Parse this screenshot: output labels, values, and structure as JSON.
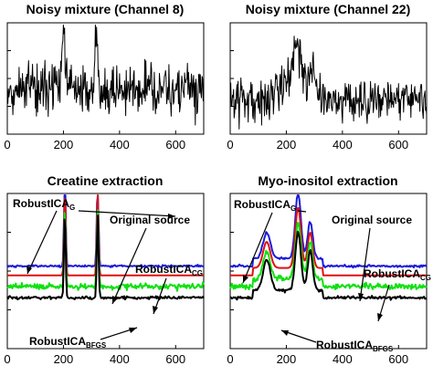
{
  "chart_data": [
    {
      "type": "line",
      "title": "Noisy mixture (Channel 8)",
      "xlim": [
        0,
        700
      ],
      "xticks": [
        0,
        200,
        400,
        600
      ],
      "xtick_labels": [
        "0",
        "200",
        "400",
        "600"
      ],
      "grid": false,
      "series": [
        {
          "color": "#000000",
          "peaks": [
            {
              "x": 200,
              "height": 0.85
            },
            {
              "x": 318,
              "height": 0.75
            }
          ],
          "baseline": 0.4,
          "noise": 0.22
        }
      ]
    },
    {
      "type": "line",
      "title": "Noisy mixture (Channel 22)",
      "xlim": [
        0,
        700
      ],
      "xticks": [
        0,
        200,
        400,
        600
      ],
      "xtick_labels": [
        "0",
        "200",
        "400",
        "600"
      ],
      "grid": false,
      "series": [
        {
          "color": "#000000",
          "peaks": [
            {
              "x": 195,
              "height": 0.25
            },
            {
              "x": 240,
              "height": 0.65
            },
            {
              "x": 290,
              "height": 0.45
            }
          ],
          "baseline": 0.3,
          "noise": 0.18
        }
      ]
    },
    {
      "type": "line",
      "title": "Creatine extraction",
      "xlim": [
        0,
        700
      ],
      "xticks": [
        0,
        200,
        400,
        600
      ],
      "xtick_labels": [
        "0",
        "200",
        "400",
        "600"
      ],
      "grid": false,
      "annotations": [
        {
          "text": "RobustICA",
          "sub": "G"
        },
        {
          "text": "Original source",
          "sub": ""
        },
        {
          "text": "RobustICA",
          "sub": "CG"
        },
        {
          "text": "RobustICA",
          "sub": "BFGS"
        }
      ],
      "series": [
        {
          "color": "#1a1adb",
          "offset": 0.78,
          "peaks": [
            {
              "x": 205,
              "height": 0.95
            },
            {
              "x": 322,
              "height": 0.95
            }
          ],
          "noise": 0.01
        },
        {
          "color": "#e01010",
          "offset": 0.88,
          "peaks": [
            {
              "x": 205,
              "height": 0.88
            },
            {
              "x": 322,
              "height": 0.88
            }
          ],
          "noise": 0.0
        },
        {
          "color": "#10e010",
          "offset": 1.0,
          "peaks": [
            {
              "x": 205,
              "height": 0.85
            },
            {
              "x": 322,
              "height": 0.85
            }
          ],
          "noise": 0.03
        },
        {
          "color": "#000000",
          "offset": 1.12,
          "peaks": [
            {
              "x": 205,
              "height": 0.9
            },
            {
              "x": 322,
              "height": 0.9
            }
          ],
          "noise": 0.015
        }
      ]
    },
    {
      "type": "line",
      "title": "Myo-inositol extraction",
      "xlim": [
        0,
        700
      ],
      "xticks": [
        0,
        200,
        400,
        600
      ],
      "xtick_labels": [
        "0",
        "200",
        "400",
        "600"
      ],
      "grid": false,
      "annotations": [
        {
          "text": "RobustICA",
          "sub": "G"
        },
        {
          "text": "Original source",
          "sub": ""
        },
        {
          "text": "RobustICA",
          "sub": "CG"
        },
        {
          "text": "RobustICA",
          "sub": "BFGS"
        }
      ],
      "series": [
        {
          "color": "#1a1adb",
          "offset": 0.78,
          "peaks": [
            {
              "x": 130,
              "height": 0.28
            },
            {
              "x": 242,
              "height": 0.7
            },
            {
              "x": 285,
              "height": 0.4
            }
          ],
          "noise": 0.012
        },
        {
          "color": "#e01010",
          "offset": 0.88,
          "peaks": [
            {
              "x": 130,
              "height": 0.28
            },
            {
              "x": 242,
              "height": 0.65
            },
            {
              "x": 285,
              "height": 0.38
            }
          ],
          "noise": 0.0
        },
        {
          "color": "#10e010",
          "offset": 1.0,
          "peaks": [
            {
              "x": 130,
              "height": 0.3
            },
            {
              "x": 242,
              "height": 0.6
            },
            {
              "x": 285,
              "height": 0.4
            }
          ],
          "noise": 0.03
        },
        {
          "color": "#000000",
          "offset": 1.12,
          "peaks": [
            {
              "x": 130,
              "height": 0.32
            },
            {
              "x": 242,
              "height": 0.62
            },
            {
              "x": 285,
              "height": 0.42
            }
          ],
          "noise": 0.015
        }
      ]
    }
  ]
}
